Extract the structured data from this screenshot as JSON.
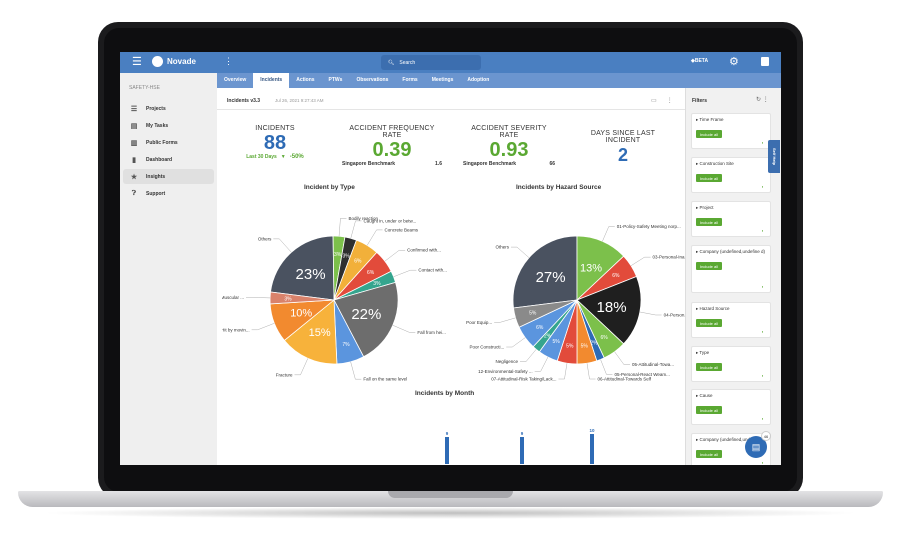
{
  "app": {
    "logo_text": "Novade",
    "search_placeholder": "Search",
    "beta_label": "BETA"
  },
  "subnav": {
    "tabs": [
      "Overview",
      "Incidents",
      "Actions",
      "PTWs",
      "Observations",
      "Forms",
      "Meetings",
      "Adoption"
    ],
    "active": "Incidents"
  },
  "sidebar": {
    "header": "SAFETY-HSE",
    "items": [
      {
        "label": "Projects",
        "icon": "layers-icon"
      },
      {
        "label": "My Tasks",
        "icon": "clipboard-icon"
      },
      {
        "label": "Public Forms",
        "icon": "document-icon"
      },
      {
        "label": "Dashboard",
        "icon": "bar-chart-icon"
      },
      {
        "label": "Insights",
        "icon": "star-icon"
      },
      {
        "label": "Support",
        "icon": "question-icon"
      }
    ],
    "active": "Insights"
  },
  "content": {
    "breadcrumb": "Incidents v3.3",
    "date": "Jul 26, 2021 9:27:43 AM",
    "kpis": {
      "incidents": {
        "label": "INCIDENTS",
        "value": "88",
        "sub_label": "Last 30 Days",
        "delta": "-50%"
      },
      "afr": {
        "label": "ACCIDENT FREQUENCY RATE",
        "value": "0.39",
        "bench_label": "Singapore Benchmark",
        "bench_value": "1.6"
      },
      "asr": {
        "label": "ACCIDENT SEVERITY RATE",
        "value": "0.93",
        "bench_label": "Singapore Benchmark",
        "bench_value": "66"
      },
      "days": {
        "label": "DAYS SINCE LAST INCIDENT",
        "value": "2"
      }
    },
    "monthly_title": "Incidents by Month"
  },
  "filters": {
    "title": "Filters",
    "include_all": "Include all",
    "cards": [
      "Time Frame",
      "Construction Site",
      "Project",
      "Company (undefined,undefine d)",
      "Hazard Source",
      "Type",
      "Cause",
      "Company (undefined,undefine"
    ]
  },
  "self_help": "Self Help",
  "fab_badge": "46",
  "colors": {
    "brand": "#4a7fc1",
    "green": "#5aa832",
    "blue": "#2e6bb5"
  },
  "chart_data": [
    {
      "type": "pie",
      "title": "Incident by Type",
      "slices": [
        {
          "label": "Others",
          "value": 23,
          "color": "#4a5260",
          "pct_label": "23%"
        },
        {
          "label": "Bodily reaction",
          "value": 3,
          "color": "#7cc04b",
          "pct_label": "3%"
        },
        {
          "label": "Caught in, under or betw...",
          "value": 3,
          "color": "#2f2f2f",
          "pct_label": "3%"
        },
        {
          "label": "Concrete Beams",
          "value": 6,
          "color": "#f2b03a",
          "pct_label": "6%"
        },
        {
          "label": "Confirmed with...",
          "value": 6,
          "color": "#e24b3b",
          "pct_label": "6%"
        },
        {
          "label": "Contact with...",
          "value": 3,
          "color": "#35a58e",
          "pct_label": "3%"
        },
        {
          "label": "Fall from hei...",
          "value": 22,
          "color": "#6d6d6d",
          "pct_label": "22%"
        },
        {
          "label": "Fall on the same level",
          "value": 7,
          "color": "#5b95de",
          "pct_label": "7%"
        },
        {
          "label": "Fracture",
          "value": 15,
          "color": "#f7b23b",
          "pct_label": "15%"
        },
        {
          "label": "Hit by movin...",
          "value": 10,
          "color": "#f28a2f",
          "pct_label": "10%"
        },
        {
          "label": "Muscular ...",
          "value": 3,
          "color": "#d9826b",
          "pct_label": "3%"
        }
      ]
    },
    {
      "type": "pie",
      "title": "Incidents by Hazard Source",
      "slices": [
        {
          "label": "Others",
          "value": 27,
          "color": "#4a5260",
          "pct_label": "27%"
        },
        {
          "label": "01-Policy-Safety Meeting norp...",
          "value": 13,
          "color": "#7cc04b",
          "pct_label": "13%"
        },
        {
          "label": "03-Personal-Ina...",
          "value": 6,
          "color": "#e24b3b",
          "pct_label": "6%"
        },
        {
          "label": "04-Person...",
          "value": 18,
          "color": "#1f1f1f",
          "pct_label": "18%"
        },
        {
          "label": "05-Attitudinal-Towa...",
          "value": 6,
          "color": "#7cc04b",
          "pct_label": "6%"
        },
        {
          "label": "05-Personal-React Weam...",
          "value": 2,
          "color": "#2e6bb5",
          "pct_label": "2%"
        },
        {
          "label": "06-Attitudinal-Towards Self",
          "value": 5,
          "color": "#f28a2f",
          "pct_label": "5%"
        },
        {
          "label": "07-Attitudinal-Risk Taking/Lack...",
          "value": 5,
          "color": "#e24b3b",
          "pct_label": "5%"
        },
        {
          "label": "12-Environmental-Safety ...",
          "value": 5,
          "color": "#5b95de",
          "pct_label": "5%"
        },
        {
          "label": "Negligence",
          "value": 2,
          "color": "#35a58e",
          "pct_label": "2%"
        },
        {
          "label": "Poor Constructi...",
          "value": 6,
          "color": "#5b95de",
          "pct_label": "6%"
        },
        {
          "label": "Poor Equip...",
          "value": 5,
          "color": "#8a8a8a",
          "pct_label": "5%"
        }
      ]
    },
    {
      "type": "bar",
      "title": "Incidents by Month",
      "categories": [
        "",
        "",
        "",
        ""
      ],
      "values": [
        9,
        9,
        10,
        3
      ]
    }
  ]
}
